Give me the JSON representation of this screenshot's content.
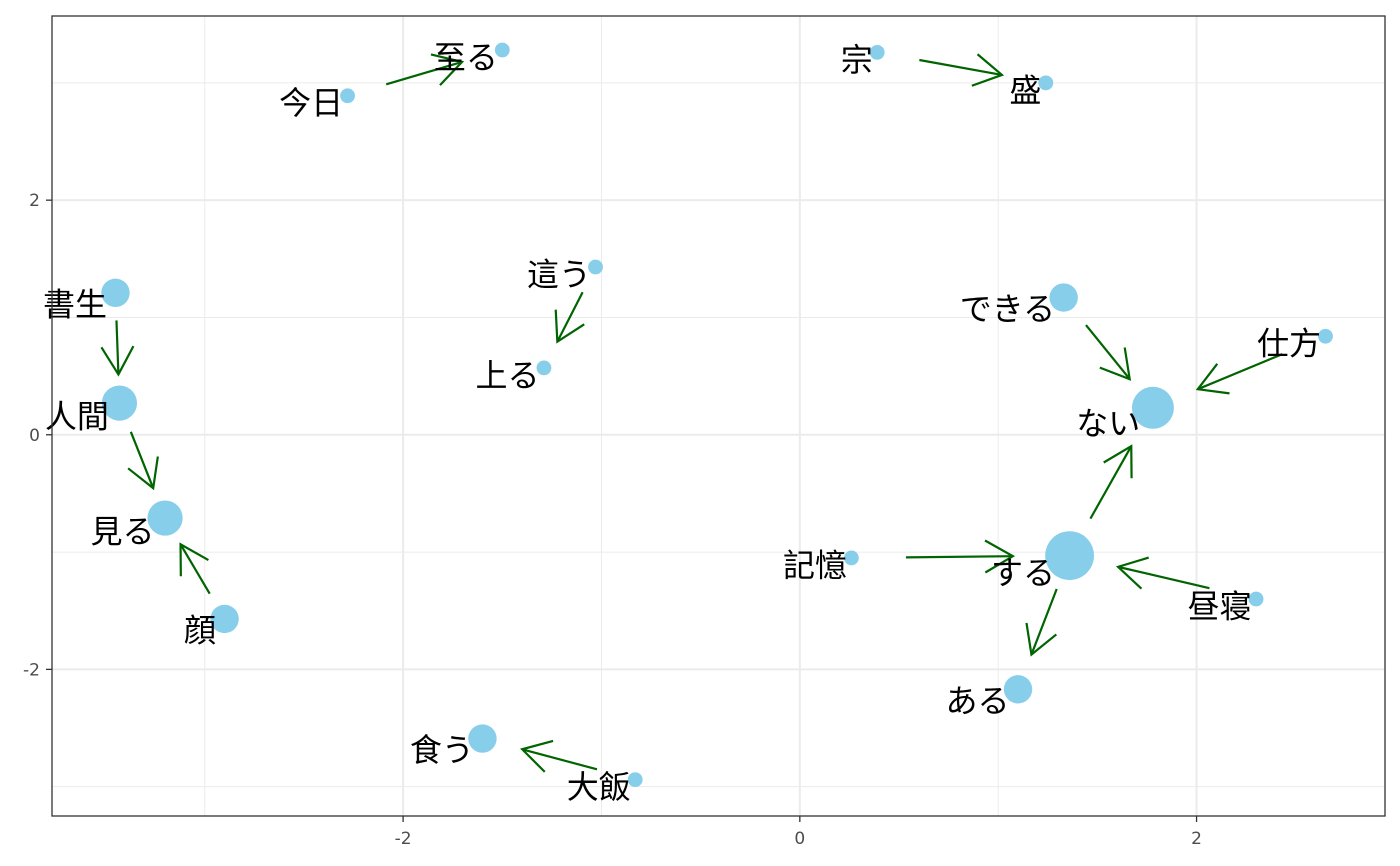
{
  "chart_data": {
    "type": "scatter",
    "subtype": "network",
    "title": "",
    "xlabel": "",
    "ylabel": "",
    "xlim": [
      -3.77,
      2.95
    ],
    "ylim": [
      -3.25,
      3.57
    ],
    "x_ticks": [
      -2,
      0,
      2
    ],
    "x_tick_labels": [
      "-2",
      "0",
      "2"
    ],
    "y_ticks": [
      -2,
      0,
      2
    ],
    "y_tick_labels": [
      "-2",
      "0",
      "2"
    ],
    "grid": true,
    "legend": "none",
    "point_color": "#87ceeb",
    "edge_color": "#006400",
    "nodes": [
      {
        "id": "shoseki",
        "label": "書生",
        "x": -3.45,
        "y": 1.21,
        "size": 3
      },
      {
        "id": "ningen",
        "label": "人間",
        "x": -3.43,
        "y": 0.27,
        "size": 4
      },
      {
        "id": "miru",
        "label": "見る",
        "x": -3.2,
        "y": -0.71,
        "size": 4
      },
      {
        "id": "kao",
        "label": "顔",
        "x": -2.9,
        "y": -1.57,
        "size": 3
      },
      {
        "id": "kyou",
        "label": "今日",
        "x": -2.28,
        "y": 2.89,
        "size": 1
      },
      {
        "id": "itaru",
        "label": "至る",
        "x": -1.5,
        "y": 3.28,
        "size": 1
      },
      {
        "id": "hau",
        "label": "這う",
        "x": -1.03,
        "y": 1.43,
        "size": 1
      },
      {
        "id": "noboru",
        "label": "上る",
        "x": -1.29,
        "y": 0.57,
        "size": 1
      },
      {
        "id": "kuu",
        "label": "食う",
        "x": -1.6,
        "y": -2.59,
        "size": 3
      },
      {
        "id": "oomeshi",
        "label": "大飯",
        "x": -0.83,
        "y": -2.94,
        "size": 1
      },
      {
        "id": "shuu",
        "label": "宗",
        "x": 0.39,
        "y": 3.26,
        "size": 1
      },
      {
        "id": "sakari",
        "label": "盛",
        "x": 1.24,
        "y": 3.0,
        "size": 1
      },
      {
        "id": "dekiru",
        "label": "できる",
        "x": 1.33,
        "y": 1.17,
        "size": 3
      },
      {
        "id": "shikata",
        "label": "仕方",
        "x": 2.65,
        "y": 0.84,
        "size": 1
      },
      {
        "id": "nai",
        "label": "ない",
        "x": 1.78,
        "y": 0.23,
        "size": 5
      },
      {
        "id": "kioku",
        "label": "記憶",
        "x": 0.26,
        "y": -1.05,
        "size": 1
      },
      {
        "id": "suru",
        "label": "する",
        "x": 1.36,
        "y": -1.03,
        "size": 6
      },
      {
        "id": "hirune",
        "label": "昼寝",
        "x": 2.3,
        "y": -1.4,
        "size": 1
      },
      {
        "id": "aru",
        "label": "ある",
        "x": 1.1,
        "y": -2.17,
        "size": 3
      }
    ],
    "edges": [
      {
        "from": "shoseki",
        "to": "ningen"
      },
      {
        "from": "ningen",
        "to": "miru"
      },
      {
        "from": "kao",
        "to": "miru"
      },
      {
        "from": "kyou",
        "to": "itaru"
      },
      {
        "from": "hau",
        "to": "noboru"
      },
      {
        "from": "oomeshi",
        "to": "kuu"
      },
      {
        "from": "shuu",
        "to": "sakari"
      },
      {
        "from": "dekiru",
        "to": "nai"
      },
      {
        "from": "shikata",
        "to": "nai"
      },
      {
        "from": "suru",
        "to": "nai"
      },
      {
        "from": "kioku",
        "to": "suru"
      },
      {
        "from": "hirune",
        "to": "suru"
      },
      {
        "from": "suru",
        "to": "aru"
      }
    ]
  }
}
